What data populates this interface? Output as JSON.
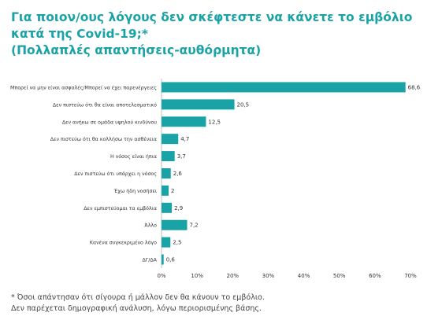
{
  "title_lines": [
    "Για ποιον/ους λόγους δεν σκέφτεστε να κάνετε το εμβόλιο",
    "κατά της Covid-19;*",
    "(Πολλαπλές απαντήσεις-αυθόρμητα)"
  ],
  "footnote_lines": [
    "* Όσοι απάντησαν ότι σίγουρα ή μάλλον δεν θα κάνουν το εμβόλιο.",
    "Δεν παρέχεται δημογραφική ανάλυση, λόγω περιορισμένης βάσης."
  ],
  "chart_data": {
    "type": "bar",
    "orientation": "horizontal",
    "categories": [
      "Μπορεί να μην είναι ασφαλές/Μπορεί να έχει παρενέργειες",
      "Δεν πιστεύω ότι θα είναι αποτελεσματικό",
      "Δεν ανήκω σε ομάδα υψηλού κινδύνου",
      "Δεν πιστεύω ότι θα κολλήσω την ασθένεια",
      "Η νόσος είναι ήπια",
      "Δεν πιστεύω ότι υπάρχει η νόσος",
      "Έχω ήδη νοσήσει",
      "Δεν εμπιστεύομαι τα εμβόλια",
      "Άλλο",
      "Κανένα συγκεκριμένο λόγο",
      "ΔΓ/ΔΑ"
    ],
    "values": [
      68.6,
      20.5,
      12.5,
      4.7,
      3.7,
      2.6,
      2,
      2.9,
      7.2,
      2.5,
      0.6
    ],
    "value_labels": [
      "68,6",
      "20,5",
      "12,5",
      "4,7",
      "3,7",
      "2,6",
      "2",
      "2,9",
      "7,2",
      "2,5",
      "0,6"
    ],
    "x_ticks": [
      0,
      10,
      20,
      30,
      40,
      50,
      60,
      70
    ],
    "x_tick_labels": [
      "0%",
      "10%",
      "20%",
      "30%",
      "40%",
      "50%",
      "60%",
      "70%"
    ],
    "xlim": [
      0,
      70
    ],
    "grid": false,
    "legend": "none",
    "bar_color": "#1aa3a6"
  }
}
